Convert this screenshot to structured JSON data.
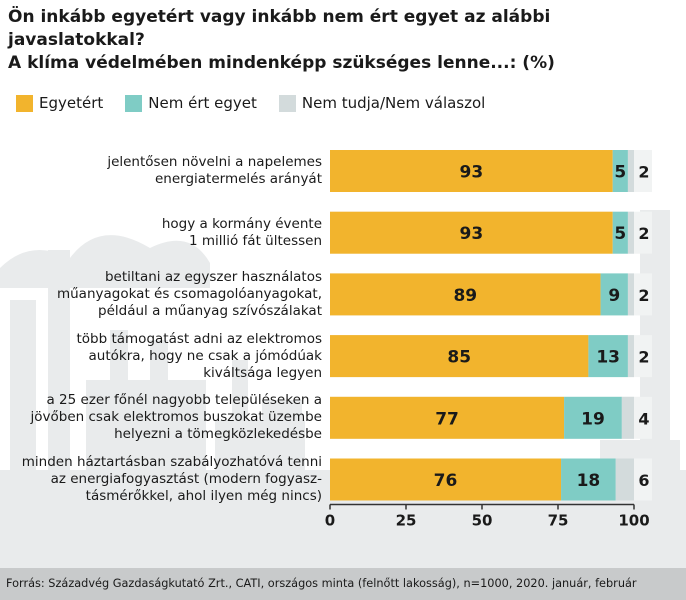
{
  "chart_data": {
    "type": "bar",
    "orientation": "horizontal",
    "stacked": true,
    "title": "Ön inkább egyetért vagy inkább nem ért egyet az alábbi javaslatokkal? A klíma védelmében mindenképp szükséges lenne...: (%)",
    "title_lines": [
      "Ön inkább egyetért vagy inkább nem ért egyet az alábbi javaslatokkal?",
      "A klíma védelmében mindenképp szükséges lenne...: (%)"
    ],
    "categories": [
      "jelentősen növelni a napelemes\nenergiatermelés arányát",
      "hogy a kormány évente\n1 millió fát ültessen",
      "betiltani az egyszer használatos\nműanyagokat és csomagolóanyagokat,\npéldául a műanyag szívószálakat",
      "több támogatást adni az elektromos\nautókra, hogy ne csak a jómódúak\nkiváltsága legyen",
      "a 25 ezer főnél nagyobb településeken a\njövőben csak elektromos buszokat üzembe\nhelyezni a tömegközlekedésbe",
      "minden háztartásban szabályozhatóvá tenni\naz energiafogyasztást (modern fogyasz-\ntásmérőkkel, ahol ilyen még nincs)"
    ],
    "series": [
      {
        "name": "Egyetért",
        "color": "#f2b42d",
        "values": [
          93,
          93,
          89,
          85,
          77,
          76
        ]
      },
      {
        "name": "Nem ért egyet",
        "color": "#7fccc5",
        "values": [
          5,
          5,
          9,
          13,
          19,
          18
        ]
      },
      {
        "name": "Nem tudja/Nem válaszol",
        "color": "#d3dbdc",
        "values": [
          2,
          2,
          2,
          2,
          4,
          6
        ]
      }
    ],
    "xlim": [
      0,
      100
    ],
    "xticks": [
      0,
      25,
      50,
      75,
      100
    ],
    "legend": "top-left",
    "grid": false
  },
  "source": "Forrás: Századvég Gazdaságkutató Zrt., CATI, országos minta (felnőtt lakosság), n=1000, 2020. január, február"
}
